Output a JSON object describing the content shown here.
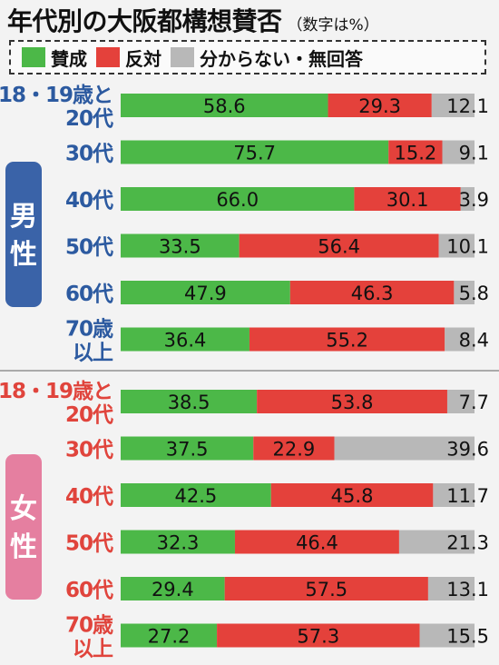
{
  "title": "年代別の大阪都構想賛否",
  "subtitle": "（数字は%）",
  "colors": {
    "agree": "#4cb848",
    "disagree": "#e4413b",
    "unknown": "#b8b8b8",
    "male_badge": "#3a63a8",
    "female_badge": "#e57fa0",
    "male_label": "#2c5aa0",
    "female_label": "#e0443c"
  },
  "chart_data": {
    "type": "bar",
    "stacked": true,
    "orientation": "horizontal",
    "legend": [
      "賛成",
      "反対",
      "分からない・無回答"
    ],
    "groups": [
      {
        "name": "男性",
        "rows": [
          {
            "label": [
              "18・19歳と",
              "20代"
            ],
            "values": [
              58.6,
              29.3,
              12.1
            ]
          },
          {
            "label": [
              "30代"
            ],
            "values": [
              75.7,
              15.2,
              9.1
            ]
          },
          {
            "label": [
              "40代"
            ],
            "values": [
              66.0,
              30.1,
              3.9
            ]
          },
          {
            "label": [
              "50代"
            ],
            "values": [
              33.5,
              56.4,
              10.1
            ]
          },
          {
            "label": [
              "60代"
            ],
            "values": [
              47.9,
              46.3,
              5.8
            ]
          },
          {
            "label": [
              "70歳",
              "以上"
            ],
            "values": [
              36.4,
              55.2,
              8.4
            ]
          }
        ]
      },
      {
        "name": "女性",
        "rows": [
          {
            "label": [
              "18・19歳と",
              "20代"
            ],
            "values": [
              38.5,
              53.8,
              7.7
            ]
          },
          {
            "label": [
              "30代"
            ],
            "values": [
              37.5,
              22.9,
              39.6
            ]
          },
          {
            "label": [
              "40代"
            ],
            "values": [
              42.5,
              45.8,
              11.7
            ]
          },
          {
            "label": [
              "50代"
            ],
            "values": [
              32.3,
              46.4,
              21.3
            ]
          },
          {
            "label": [
              "60代"
            ],
            "values": [
              29.4,
              57.5,
              13.1
            ]
          },
          {
            "label": [
              "70歳",
              "以上"
            ],
            "values": [
              27.2,
              57.3,
              15.5
            ]
          }
        ]
      }
    ]
  }
}
